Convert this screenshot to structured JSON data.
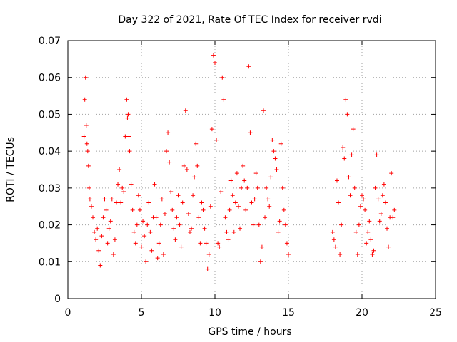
{
  "chart_data": {
    "type": "scatter",
    "title": "Day 322 of 2021, Rate Of TEC Index for receiver rvdi",
    "xlabel": "GPS time / hours",
    "ylabel": "ROTI / TECUs",
    "xlim": [
      0,
      25
    ],
    "ylim": [
      0,
      0.07
    ],
    "x_ticks": [
      "0",
      "5",
      "10",
      "15",
      "20",
      "25"
    ],
    "y_ticks": [
      "0",
      "0.01",
      "0.02",
      "0.03",
      "0.04",
      "0.05",
      "0.06",
      "0.07"
    ],
    "grid": true,
    "legend": "none",
    "marker": "plus",
    "color": "#ff0000",
    "series": [
      {
        "x": [
          1.1,
          1.15,
          1.2,
          1.25,
          1.3,
          1.35,
          1.4,
          1.45,
          1.5,
          1.6,
          1.7,
          1.8,
          1.9,
          2.0,
          2.1,
          2.2,
          2.3,
          2.4,
          2.5,
          2.6,
          2.7,
          2.8,
          2.9,
          3.0,
          3.1,
          3.2,
          3.3,
          3.4,
          3.5,
          3.6,
          3.7,
          3.8,
          3.9,
          4.0,
          4.05,
          4.1,
          4.15,
          4.2,
          4.3,
          4.4,
          4.5,
          4.6,
          4.7,
          4.8,
          4.9,
          5.0,
          5.1,
          5.2,
          5.3,
          5.4,
          5.5,
          5.6,
          5.7,
          5.8,
          5.9,
          6.0,
          6.1,
          6.2,
          6.3,
          6.4,
          6.5,
          6.6,
          6.7,
          6.8,
          6.9,
          7.0,
          7.1,
          7.2,
          7.3,
          7.4,
          7.5,
          7.6,
          7.7,
          7.8,
          7.9,
          8.0,
          8.1,
          8.2,
          8.3,
          8.4,
          8.5,
          8.6,
          8.7,
          8.8,
          8.9,
          9.0,
          9.1,
          9.2,
          9.3,
          9.4,
          9.5,
          9.6,
          9.7,
          9.8,
          9.9,
          10.0,
          10.1,
          10.2,
          10.3,
          10.4,
          10.5,
          10.6,
          10.7,
          10.8,
          10.9,
          11.0,
          11.1,
          11.2,
          11.3,
          11.4,
          11.5,
          11.6,
          11.7,
          11.8,
          11.9,
          12.0,
          12.1,
          12.2,
          12.3,
          12.4,
          12.5,
          12.6,
          12.7,
          12.8,
          12.9,
          13.0,
          13.1,
          13.2,
          13.3,
          13.4,
          13.5,
          13.6,
          13.7,
          13.8,
          13.9,
          14.0,
          14.1,
          14.2,
          14.3,
          14.4,
          14.5,
          14.6,
          14.7,
          14.8,
          14.9,
          15.0,
          18.0,
          18.1,
          18.2,
          18.3,
          18.4,
          18.5,
          18.6,
          18.7,
          18.8,
          18.9,
          19.0,
          19.1,
          19.2,
          19.3,
          19.4,
          19.5,
          19.6,
          19.7,
          19.8,
          19.9,
          20.0,
          20.1,
          20.2,
          20.3,
          20.4,
          20.5,
          20.6,
          20.7,
          20.8,
          20.9,
          21.0,
          21.1,
          21.2,
          21.3,
          21.4,
          21.5,
          21.6,
          21.7,
          21.8,
          21.9,
          22.0,
          22.1,
          22.2
        ],
        "y": [
          0.044,
          0.054,
          0.06,
          0.047,
          0.042,
          0.04,
          0.036,
          0.03,
          0.027,
          0.025,
          0.022,
          0.018,
          0.016,
          0.019,
          0.013,
          0.009,
          0.017,
          0.022,
          0.027,
          0.024,
          0.015,
          0.019,
          0.021,
          0.027,
          0.012,
          0.016,
          0.026,
          0.031,
          0.035,
          0.026,
          0.03,
          0.029,
          0.044,
          0.054,
          0.049,
          0.05,
          0.044,
          0.04,
          0.031,
          0.024,
          0.018,
          0.015,
          0.02,
          0.028,
          0.024,
          0.014,
          0.021,
          0.017,
          0.01,
          0.02,
          0.026,
          0.018,
          0.013,
          0.022,
          0.031,
          0.022,
          0.011,
          0.015,
          0.02,
          0.027,
          0.012,
          0.023,
          0.04,
          0.045,
          0.037,
          0.029,
          0.024,
          0.019,
          0.016,
          0.022,
          0.028,
          0.02,
          0.014,
          0.026,
          0.036,
          0.051,
          0.035,
          0.023,
          0.018,
          0.019,
          0.028,
          0.033,
          0.042,
          0.036,
          0.022,
          0.015,
          0.026,
          0.024,
          0.019,
          0.015,
          0.008,
          0.012,
          0.025,
          0.046,
          0.066,
          0.064,
          0.043,
          0.015,
          0.014,
          0.029,
          0.06,
          0.054,
          0.022,
          0.018,
          0.016,
          0.024,
          0.032,
          0.028,
          0.018,
          0.026,
          0.034,
          0.025,
          0.019,
          0.03,
          0.036,
          0.032,
          0.024,
          0.03,
          0.063,
          0.045,
          0.026,
          0.02,
          0.027,
          0.034,
          0.03,
          0.02,
          0.01,
          0.014,
          0.051,
          0.022,
          0.03,
          0.027,
          0.025,
          0.033,
          0.043,
          0.04,
          0.038,
          0.035,
          0.018,
          0.021,
          0.042,
          0.03,
          0.024,
          0.02,
          0.015,
          0.012,
          0.018,
          0.016,
          0.014,
          0.032,
          0.026,
          0.012,
          0.02,
          0.041,
          0.038,
          0.054,
          0.05,
          0.033,
          0.028,
          0.039,
          0.046,
          0.03,
          0.018,
          0.012,
          0.02,
          0.025,
          0.028,
          0.027,
          0.024,
          0.015,
          0.018,
          0.021,
          0.016,
          0.012,
          0.013,
          0.03,
          0.039,
          0.027,
          0.021,
          0.023,
          0.028,
          0.031,
          0.026,
          0.019,
          0.014,
          0.022,
          0.034,
          0.022,
          0.024
        ]
      }
    ]
  }
}
